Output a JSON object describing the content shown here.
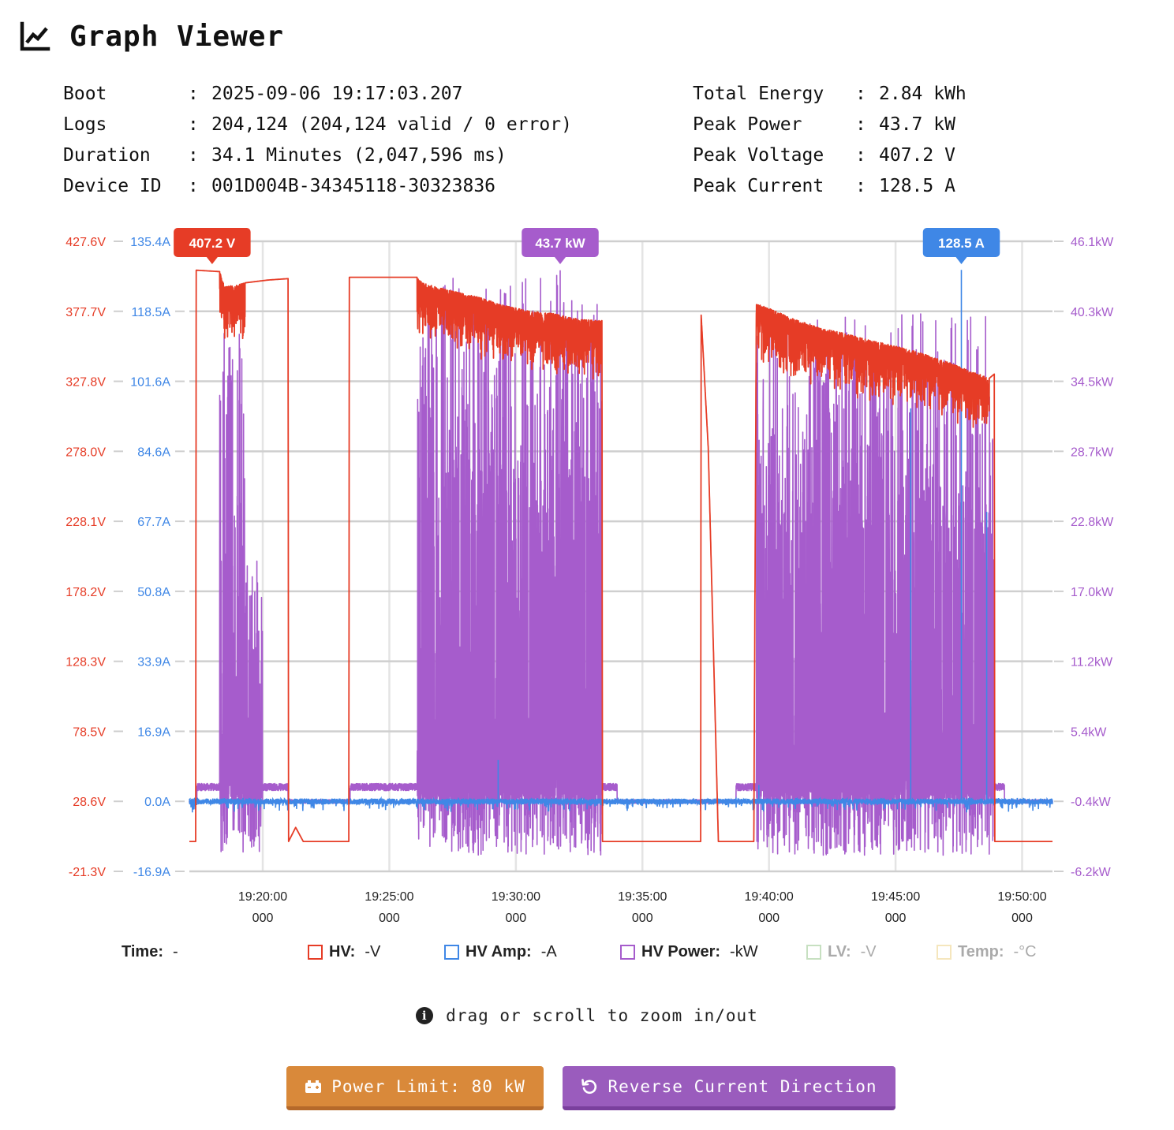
{
  "header": {
    "title": "Graph Viewer",
    "icon": "line-chart-icon"
  },
  "stats_left": [
    {
      "key": "Boot",
      "value": "2025-09-06 19:17:03.207"
    },
    {
      "key": "Logs",
      "value": "204,124 (204,124 valid / 0 error)"
    },
    {
      "key": "Duration",
      "value": "34.1 Minutes (2,047,596 ms)"
    },
    {
      "key": "Device ID",
      "value": "001D004B-34345118-30323836"
    }
  ],
  "stats_right": [
    {
      "key": "Total Energy",
      "value": "2.84 kWh"
    },
    {
      "key": "Peak Power",
      "value": "43.7 kW"
    },
    {
      "key": "Peak Voltage",
      "value": "407.2 V"
    },
    {
      "key": "Peak Current",
      "value": "128.5 A"
    }
  ],
  "stats_separator": ":",
  "chart_data": {
    "type": "line",
    "x_unit": "time",
    "x_start": "19:17:03.207",
    "x_end": "19:51:10.803",
    "x_ticks": [
      {
        "time": "19:20:00",
        "ms": "000",
        "minutes": 20
      },
      {
        "time": "19:25:00",
        "ms": "000",
        "minutes": 25
      },
      {
        "time": "19:30:00",
        "ms": "000",
        "minutes": 30
      },
      {
        "time": "19:35:00",
        "ms": "000",
        "minutes": 35
      },
      {
        "time": "19:40:00",
        "ms": "000",
        "minutes": 40
      },
      {
        "time": "19:45:00",
        "ms": "000",
        "minutes": 45
      },
      {
        "time": "19:50:00",
        "ms": "000",
        "minutes": 50
      }
    ],
    "x_range_minutes": [
      17.1,
      51.2
    ],
    "y_axes": {
      "voltage": {
        "label": "HV (V)",
        "range": [
          -21.3,
          427.6
        ],
        "ticks": [
          "427.6V",
          "377.7V",
          "327.8V",
          "278.0V",
          "228.1V",
          "178.2V",
          "128.3V",
          "78.5V",
          "28.6V",
          "-21.3V"
        ]
      },
      "current": {
        "label": "HV Amp (A)",
        "range": [
          -16.9,
          135.4
        ],
        "ticks": [
          "135.4A",
          "118.5A",
          "101.6A",
          "84.6A",
          "67.7A",
          "50.8A",
          "33.9A",
          "16.9A",
          "0.0A",
          "-16.9A"
        ]
      },
      "power": {
        "label": "HV Power (kW)",
        "range": [
          -6.2,
          46.1
        ],
        "ticks": [
          "46.1kW",
          "40.3kW",
          "34.5kW",
          "28.7kW",
          "22.8kW",
          "17.0kW",
          "11.2kW",
          "5.4kW",
          "-0.4kW",
          "-6.2kW"
        ]
      }
    },
    "grid": true,
    "series": [
      {
        "name": "HV",
        "unit": "V",
        "color": "#e63c26",
        "points": [
          [
            17.1,
            0
          ],
          [
            17.35,
            0
          ],
          [
            17.37,
            407
          ],
          [
            18.3,
            406
          ],
          [
            18.5,
            395
          ],
          [
            19.3,
            398
          ],
          [
            20.2,
            400
          ],
          [
            21.0,
            401
          ],
          [
            21.02,
            0
          ],
          [
            21.3,
            10
          ],
          [
            21.6,
            0
          ],
          [
            23.4,
            0
          ],
          [
            23.42,
            402
          ],
          [
            26.1,
            402
          ],
          [
            26.3,
            398
          ],
          [
            27.5,
            392
          ],
          [
            28.5,
            388
          ],
          [
            29.5,
            382
          ],
          [
            30.5,
            378
          ],
          [
            31.5,
            376
          ],
          [
            32.5,
            372
          ],
          [
            33.4,
            371
          ],
          [
            33.42,
            0
          ],
          [
            37.3,
            0
          ],
          [
            37.32,
            375
          ],
          [
            37.6,
            280
          ],
          [
            38.0,
            0
          ],
          [
            39.4,
            0
          ],
          [
            39.5,
            383
          ],
          [
            40.0,
            380
          ],
          [
            41.0,
            372
          ],
          [
            42.0,
            366
          ],
          [
            43.0,
            362
          ],
          [
            44.0,
            357
          ],
          [
            45.0,
            353
          ],
          [
            46.0,
            348
          ],
          [
            47.0,
            342
          ],
          [
            48.0,
            335
          ],
          [
            48.7,
            330
          ],
          [
            48.9,
            333
          ],
          [
            48.92,
            0
          ],
          [
            51.0,
            0
          ]
        ],
        "noisy_range": [
          [
            18.3,
            19.3
          ],
          [
            26.1,
            33.4
          ],
          [
            39.5,
            48.7
          ]
        ],
        "noise_depth_v": 20
      },
      {
        "name": "HV Amp",
        "unit": "A",
        "color": "#3f87e6",
        "baseline_a": 0.0,
        "spikes": [
          [
            39.6,
            4
          ],
          [
            45.6,
            95
          ],
          [
            47.6,
            128.5
          ],
          [
            48.6,
            70
          ],
          [
            29.3,
            10
          ]
        ]
      },
      {
        "name": "HV Power",
        "unit": "kW",
        "color": "#a65ccc",
        "baseline_kw": -0.4,
        "bursts": [
          {
            "from": 18.3,
            "to": 19.3,
            "peak": 39.5
          },
          {
            "from": 19.3,
            "to": 20.0,
            "peak": 20
          },
          {
            "from": 26.1,
            "to": 33.4,
            "peak": 43.7
          },
          {
            "from": 39.5,
            "to": 48.9,
            "peak": 40.5
          }
        ],
        "peak_point": [
          31.75,
          43.7
        ]
      }
    ],
    "markers": [
      {
        "label": "407.2 V",
        "color": "#e63c26",
        "x": 18.0,
        "y_axis": "voltage",
        "y": 407.2
      },
      {
        "label": "43.7 kW",
        "color": "#a65ccc",
        "x": 31.75,
        "y_axis": "power",
        "y": 43.7
      },
      {
        "label": "128.5 A",
        "color": "#3f87e6",
        "x": 47.6,
        "y_axis": "current",
        "y": 128.5
      }
    ]
  },
  "legend": {
    "time_label": "Time:",
    "time_value": "-",
    "items": [
      {
        "label": "HV:",
        "value": "-V",
        "color": "#e63c26",
        "active": true
      },
      {
        "label": "HV Amp:",
        "value": "-A",
        "color": "#3f87e6",
        "active": true
      },
      {
        "label": "HV Power:",
        "value": "-kW",
        "color": "#a65ccc",
        "active": true
      },
      {
        "label": "LV:",
        "value": "-V",
        "color": "#9ccf92",
        "active": false
      },
      {
        "label": "Temp:",
        "value": "-°C",
        "color": "#efd48f",
        "active": false
      }
    ]
  },
  "hint": {
    "icon": "info-icon",
    "text": "drag or scroll to zoom in/out"
  },
  "buttons": {
    "power_limit": {
      "icon": "battery-icon",
      "label": "Power Limit: 80 kW",
      "color": "#d9893a"
    },
    "reverse": {
      "icon": "rotate-ccw-icon",
      "label": "Reverse Current Direction",
      "color": "#9a5cbd"
    }
  }
}
